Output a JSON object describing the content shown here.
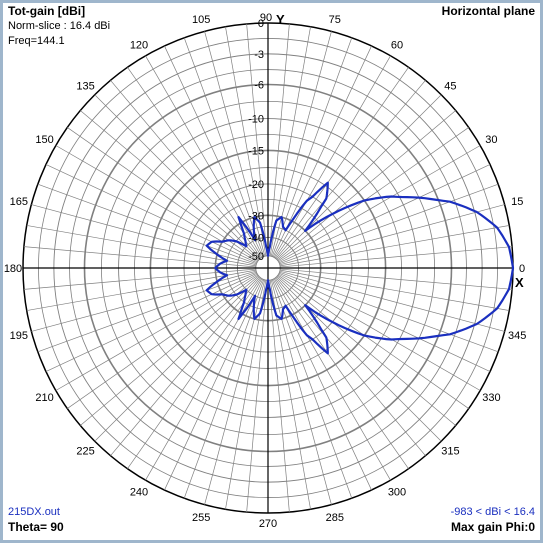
{
  "header": {
    "title": "Tot-gain [dBi]",
    "norm_slice": "Norm-slice : 16.4 dBi",
    "freq": "Freq=144.1",
    "plane": "Horizontal plane"
  },
  "footer": {
    "filename": "215DX.out",
    "theta": "Theta= 90",
    "range": "-983 < dBi < 16.4",
    "max_gain": "Max gain Phi:0"
  },
  "axes": {
    "y_label": "Y",
    "x_label": "X"
  },
  "colors": {
    "pattern": "#1a2fbf",
    "grid": "#808080",
    "axis": "#000000"
  },
  "chart_data": {
    "type": "polar",
    "plane": "horizontal",
    "angle_labels": [
      "0",
      "15",
      "30",
      "45",
      "60",
      "75",
      "90",
      "105",
      "120",
      "135",
      "150",
      "165",
      "180",
      "195",
      "210",
      "225",
      "240",
      "255",
      "270",
      "285",
      "300",
      "315",
      "330",
      "345"
    ],
    "radial_labels": [
      "0",
      "-3",
      "-6",
      "-10",
      "-15",
      "-20",
      "-30",
      "-40",
      "-50"
    ],
    "pattern_dbi_relative": {
      "phi_deg": [
        0,
        5,
        10,
        15,
        20,
        25,
        30,
        35,
        40,
        45,
        50,
        55,
        60,
        65,
        70,
        75,
        80,
        85,
        90,
        95,
        100,
        105,
        110,
        115,
        120,
        125,
        130,
        135,
        140,
        145,
        150,
        155,
        160,
        165,
        170,
        175,
        180
      ],
      "gain_db": [
        0,
        -0.3,
        -1.2,
        -2.8,
        -5,
        -8,
        -11,
        -15,
        -20,
        -30,
        -19,
        -17,
        -22,
        -35,
        -34,
        -30,
        -32,
        -45,
        -50,
        -45,
        -33,
        -30,
        -35,
        -40,
        -28,
        -35,
        -38,
        -40,
        -35,
        -32,
        -30,
        -27,
        -26,
        -30,
        -35,
        -32,
        -30
      ]
    }
  }
}
